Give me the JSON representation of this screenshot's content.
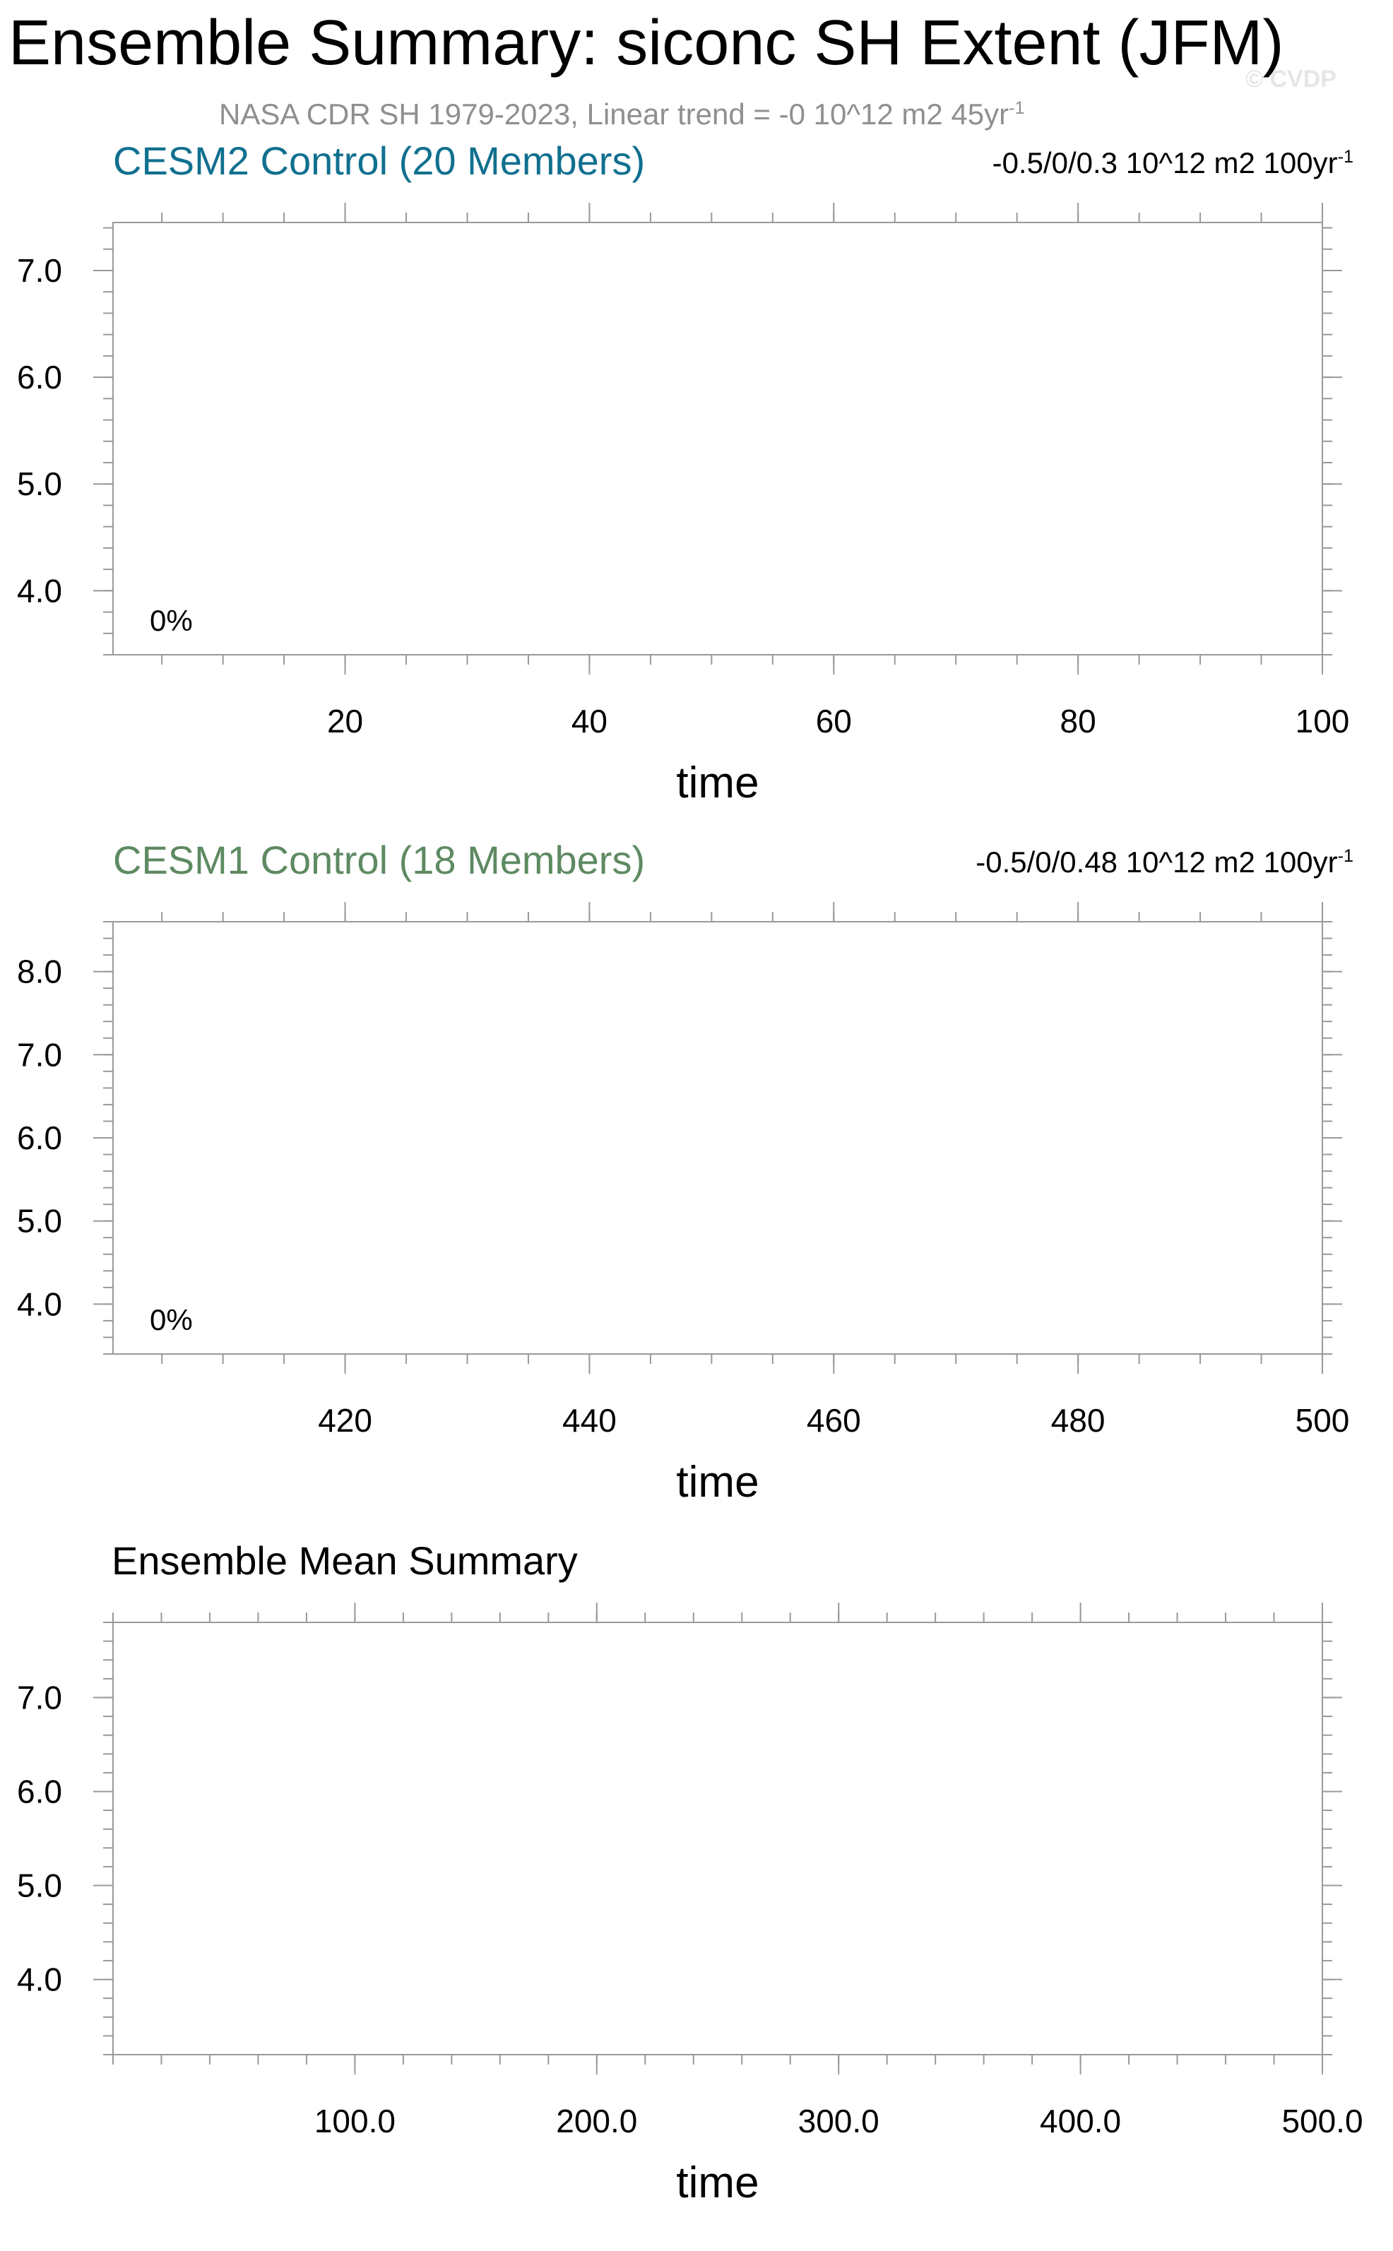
{
  "title": "Ensemble Summary: siconc SH Extent (JFM)",
  "watermark": "© CVDP",
  "observations": {
    "label": "NASA CDR SH 1979-2023, Linear trend = -0 10^12 m2 45yr",
    "superscript": "-1"
  },
  "colors": {
    "cesm2_title": "#10708f",
    "cesm1_title": "#5e8a62",
    "axis": "#999999",
    "subtitle": "#8f8f8f",
    "watermark": "#e6e6e6"
  },
  "chart_data": [
    {
      "type": "line",
      "title": "CESM2 Control (20 Members)",
      "trend_label": "-0.5/0/0.3 10^12 m2 100yr",
      "trend_superscript": "-1",
      "annotation": "0%",
      "xlabel": "time",
      "ylabel": "",
      "xlim": [
        1,
        100
      ],
      "ylim": [
        3.4,
        7.45
      ],
      "xticks": [
        20,
        40,
        60,
        80,
        100
      ],
      "xtick_labels": [
        "20",
        "40",
        "60",
        "80",
        "100"
      ],
      "yticks": [
        4,
        5,
        6,
        7
      ],
      "ytick_labels": [
        "4.0",
        "5.0",
        "6.0",
        "7.0"
      ],
      "series": []
    },
    {
      "type": "line",
      "title": "CESM1 Control (18 Members)",
      "trend_label": "-0.5/0/0.48 10^12 m2 100yr",
      "trend_superscript": "-1",
      "annotation": "0%",
      "xlabel": "time",
      "ylabel": "",
      "xlim": [
        401,
        500
      ],
      "ylim": [
        3.4,
        8.6
      ],
      "xticks": [
        420,
        440,
        460,
        480,
        500
      ],
      "xtick_labels": [
        "420",
        "440",
        "460",
        "480",
        "500"
      ],
      "yticks": [
        4,
        5,
        6,
        7,
        8
      ],
      "ytick_labels": [
        "4.0",
        "5.0",
        "6.0",
        "7.0",
        "8.0"
      ],
      "series": []
    },
    {
      "type": "line",
      "title": "Ensemble Mean Summary",
      "xlabel": "time",
      "ylabel": "",
      "xlim": [
        0,
        500
      ],
      "ylim": [
        3.2,
        7.8
      ],
      "xticks": [
        100,
        200,
        300,
        400,
        500
      ],
      "xtick_labels": [
        "100.0",
        "200.0",
        "300.0",
        "400.0",
        "500.0"
      ],
      "yticks": [
        4,
        5,
        6,
        7
      ],
      "ytick_labels": [
        "4.0",
        "5.0",
        "6.0",
        "7.0"
      ],
      "series": []
    }
  ]
}
